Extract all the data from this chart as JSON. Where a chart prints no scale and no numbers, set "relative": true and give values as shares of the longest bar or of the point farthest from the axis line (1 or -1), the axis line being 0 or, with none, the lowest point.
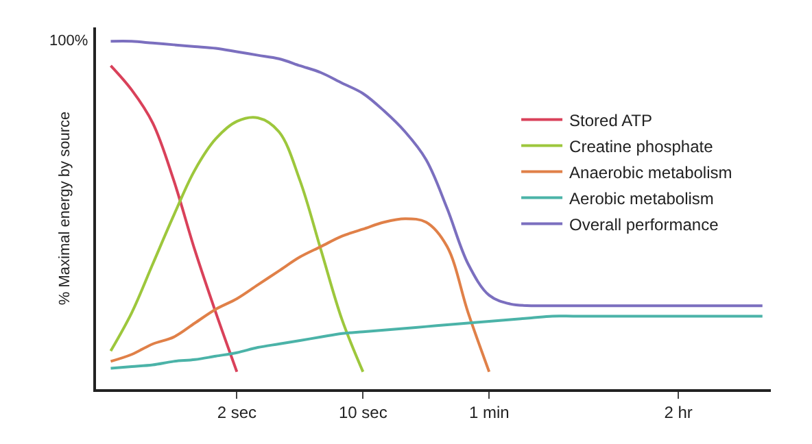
{
  "chart_data": {
    "type": "line",
    "relative": true,
    "ylabel": "% Maximal energy by source",
    "categories": [
      null,
      null,
      null,
      null,
      null,
      null,
      "2 sec",
      null,
      null,
      null,
      null,
      null,
      "10 sec",
      null,
      null,
      null,
      null,
      null,
      "1 min",
      null,
      null,
      null,
      null,
      null,
      null,
      null,
      null,
      "2 hr",
      null,
      null,
      null,
      null
    ],
    "annotations": [
      "100%"
    ],
    "legend": "right",
    "marker": "none",
    "line_style": "solid",
    "series": [
      {
        "name": "Stored ATP",
        "color": "#d9415a",
        "values": [
          0.93,
          0.86,
          0.765,
          0.6,
          0.4,
          0.22,
          0.05,
          null,
          null,
          null,
          null,
          null,
          null,
          null,
          null,
          null,
          null,
          null,
          null,
          null,
          null,
          null,
          null,
          null,
          null,
          null,
          null,
          null,
          null,
          null,
          null,
          null
        ]
      },
      {
        "name": "Creatine phosphate",
        "color": "#9dc73c",
        "values": [
          0.11,
          0.22,
          0.36,
          0.5,
          0.63,
          0.72,
          0.77,
          0.78,
          0.74,
          0.6,
          0.4,
          0.2,
          0.05,
          null,
          null,
          null,
          null,
          null,
          null,
          null,
          null,
          null,
          null,
          null,
          null,
          null,
          null,
          null,
          null,
          null,
          null,
          null
        ]
      },
      {
        "name": "Anaerobic metabolism",
        "color": "#e08048",
        "values": [
          0.08,
          0.1,
          0.13,
          0.15,
          0.19,
          0.23,
          0.26,
          0.3,
          0.34,
          0.38,
          0.41,
          0.44,
          0.46,
          0.48,
          0.49,
          0.48,
          0.41,
          0.22,
          0.05,
          null,
          null,
          null,
          null,
          null,
          null,
          null,
          null,
          null,
          null,
          null,
          null,
          null
        ]
      },
      {
        "name": "Aerobic metabolism",
        "color": "#4bb3a8",
        "values": [
          0.06,
          0.065,
          0.07,
          0.08,
          0.085,
          0.095,
          0.105,
          0.12,
          0.13,
          0.14,
          0.15,
          0.16,
          0.165,
          0.17,
          0.175,
          0.18,
          0.185,
          0.19,
          0.195,
          0.2,
          0.205,
          0.21,
          0.21,
          0.21,
          0.21,
          0.21,
          0.21,
          0.21,
          0.21,
          0.21,
          0.21,
          0.21
        ]
      },
      {
        "name": "Overall performance",
        "color": "#7b6fbf",
        "values": [
          1.0,
          1.0,
          0.995,
          0.99,
          0.985,
          0.98,
          0.97,
          0.96,
          0.95,
          0.93,
          0.91,
          0.88,
          0.85,
          0.8,
          0.74,
          0.66,
          0.52,
          0.36,
          0.27,
          0.245,
          0.24,
          0.24,
          0.24,
          0.24,
          0.24,
          0.24,
          0.24,
          0.24,
          0.24,
          0.24,
          0.24,
          0.24
        ]
      }
    ]
  }
}
